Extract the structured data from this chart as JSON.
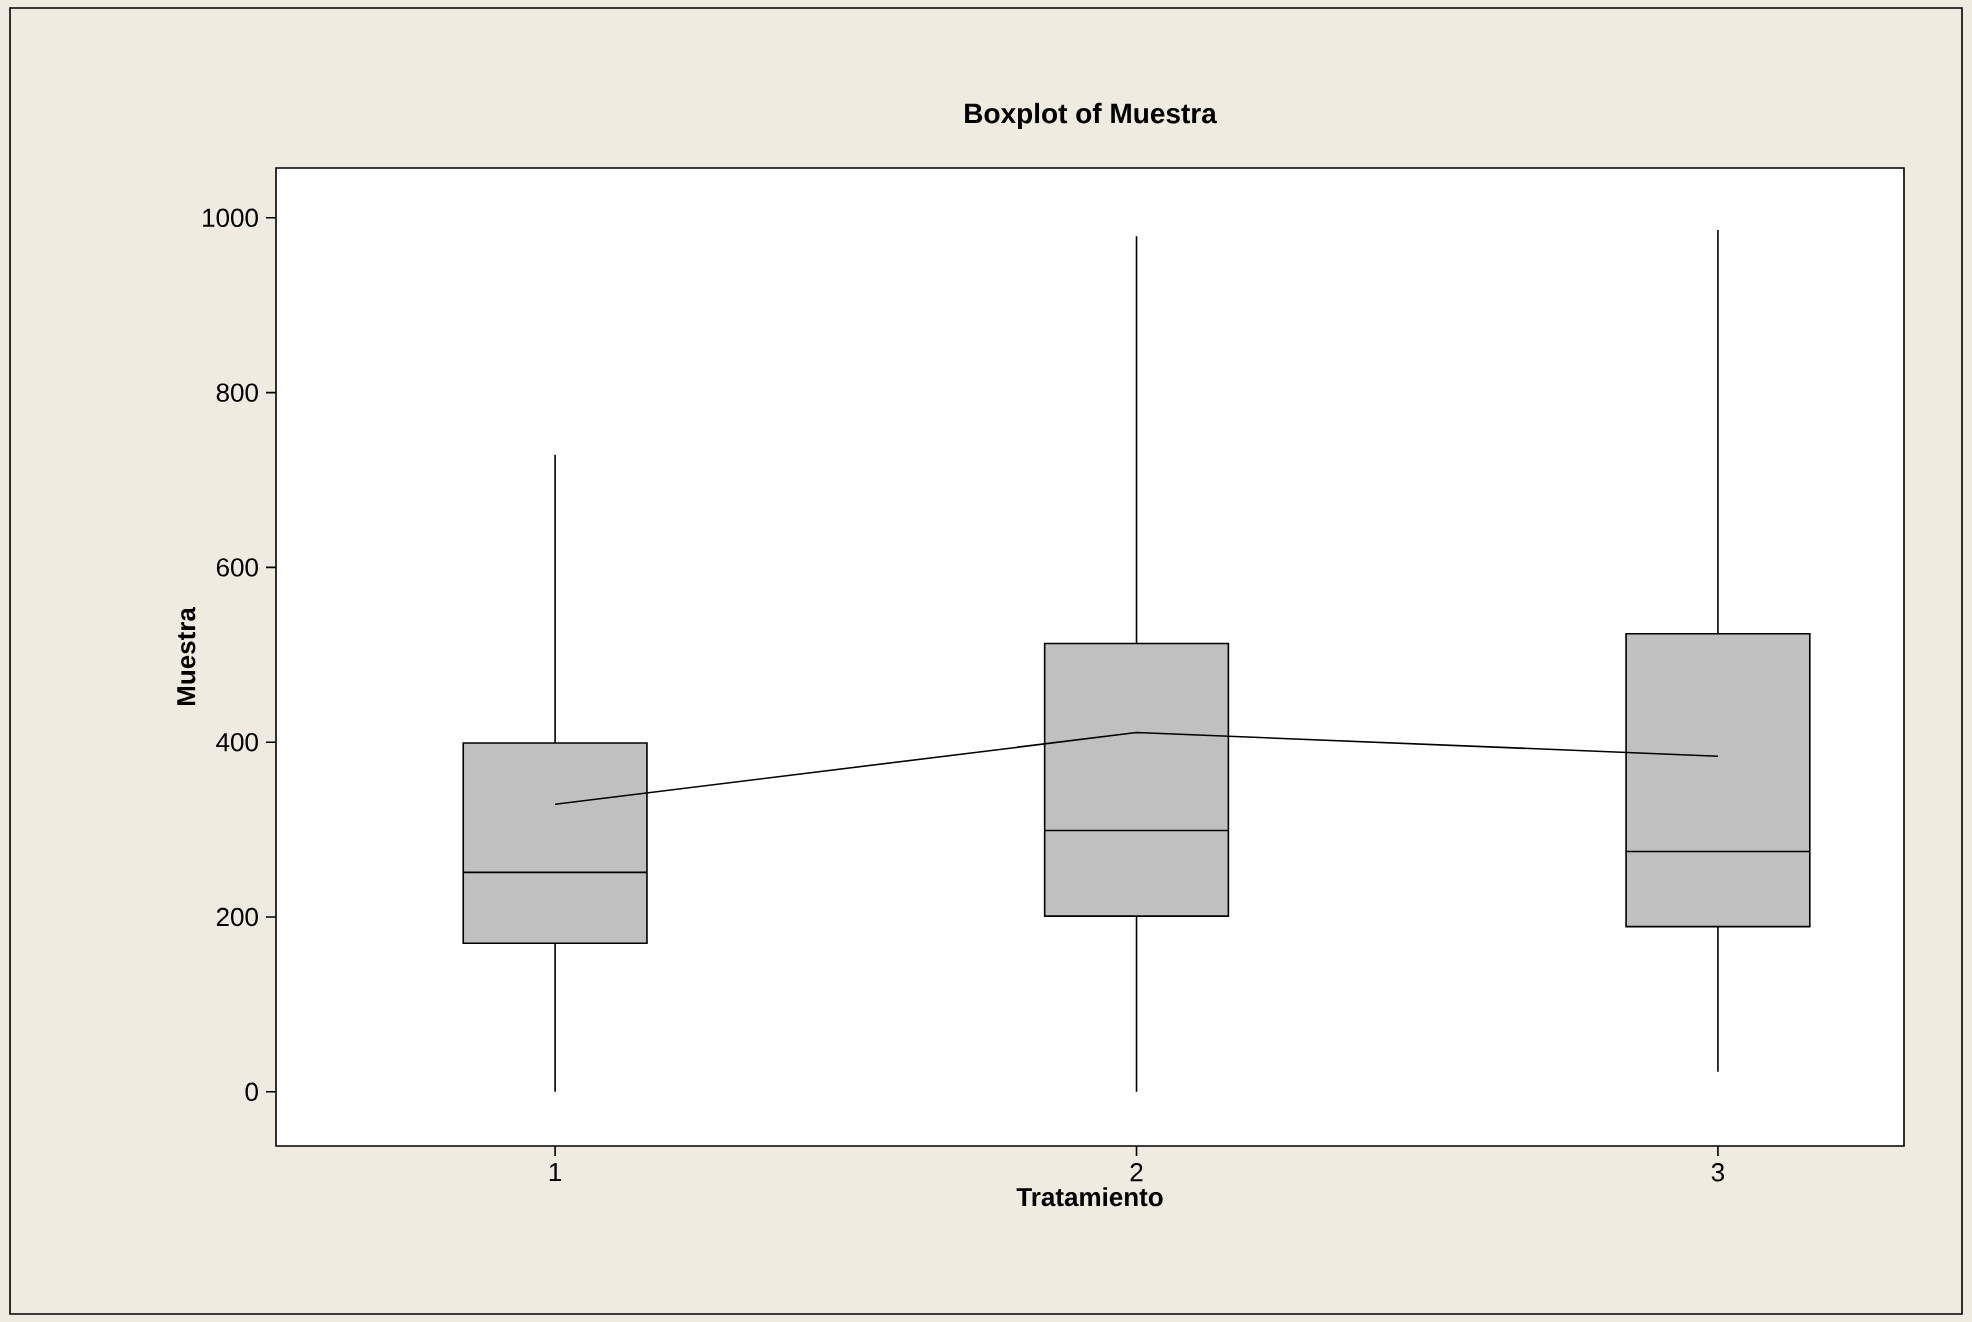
{
  "chart_data": {
    "type": "box",
    "title": "Boxplot of Muestra",
    "xlabel": "Tratamiento",
    "ylabel": "Muestra",
    "categories": [
      "1",
      "2",
      "3"
    ],
    "boxes": [
      {
        "low": 0,
        "q1": 170,
        "median": 251,
        "q3": 399,
        "high": 729
      },
      {
        "low": 0,
        "q1": 201,
        "median": 299,
        "q3": 513,
        "high": 979
      },
      {
        "low": 23,
        "q1": 189,
        "median": 275,
        "q3": 524,
        "high": 986
      }
    ],
    "color": "#c0c0c0",
    "series": [
      {
        "type": "line",
        "color": "#000000",
        "values": [
          329,
          411,
          384
        ]
      }
    ],
    "ylim": [
      -62,
      1057
    ],
    "yticks": [
      0,
      200,
      400,
      600,
      800,
      1000
    ],
    "grid": false
  }
}
